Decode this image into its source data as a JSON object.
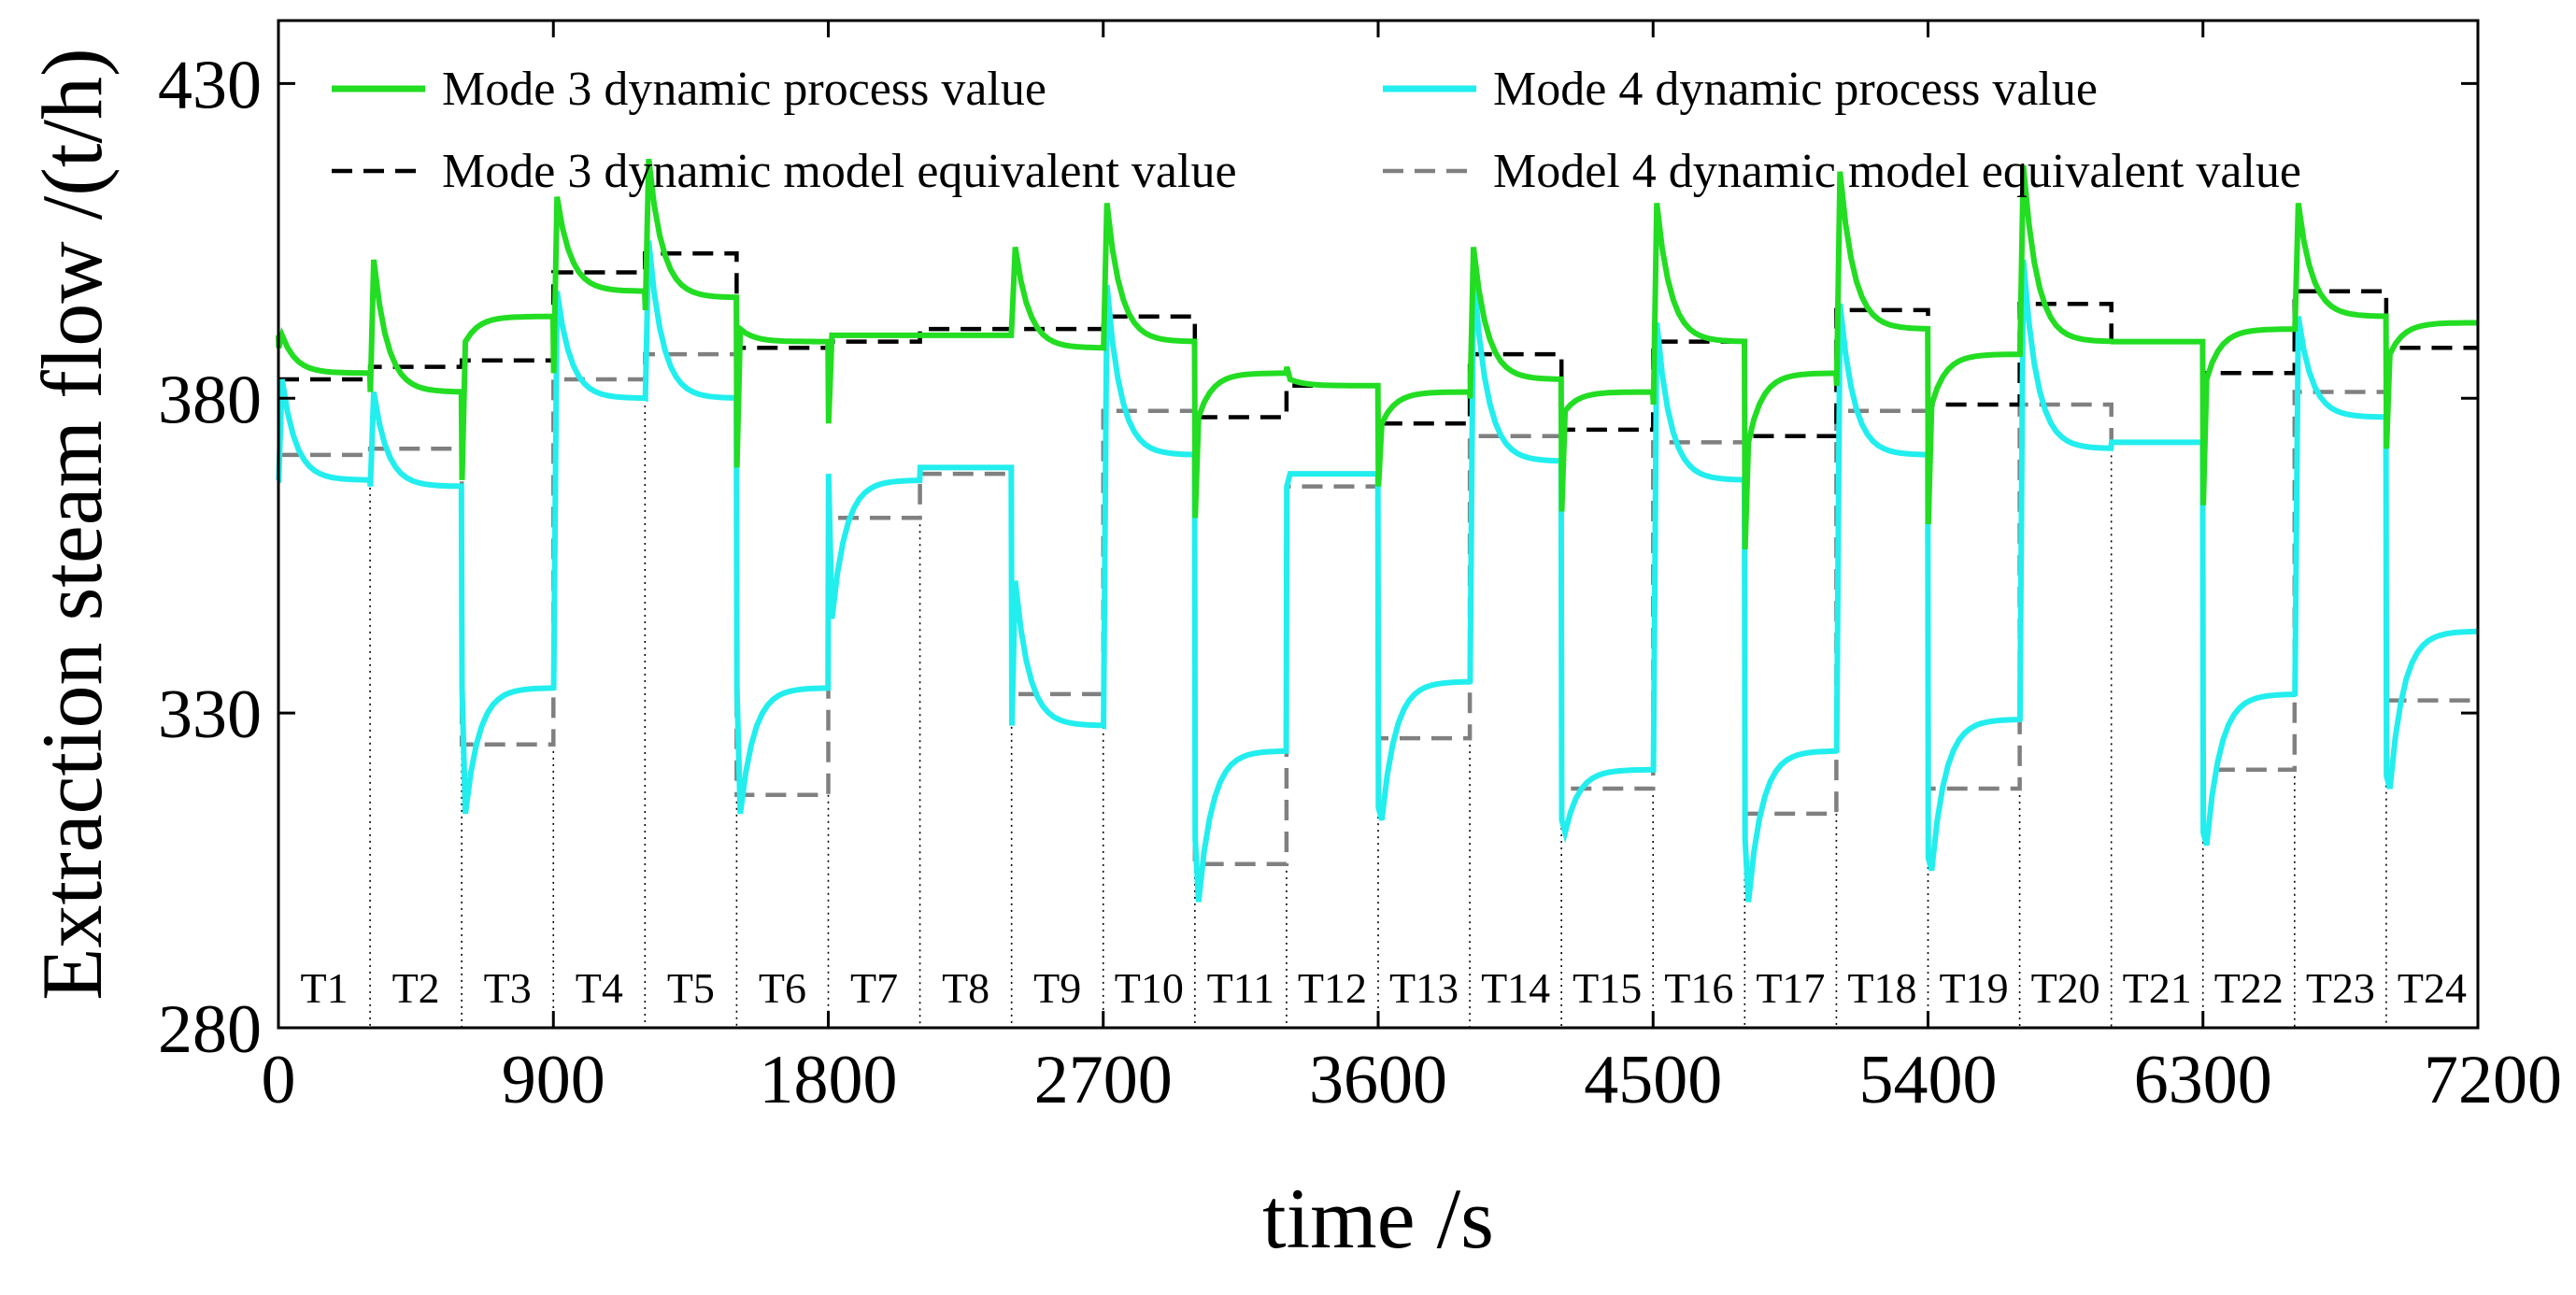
{
  "colors": {
    "mode3_process": "#22dd22",
    "mode4_process": "#22eeee",
    "mode3_model": "#000000",
    "mode4_model": "#808080"
  },
  "chart_data": {
    "type": "line",
    "title": "",
    "xlabel": "time /s",
    "ylabel": "Extraction steam flow /(t/h)",
    "xlim": [
      0,
      7200
    ],
    "ylim": [
      280,
      440
    ],
    "xticks": [
      0,
      900,
      1800,
      2700,
      3600,
      4500,
      5400,
      6300,
      7200
    ],
    "yticks": [
      280,
      330,
      380,
      430
    ],
    "legend": {
      "position": "top",
      "entries": [
        "Mode 3 dynamic process value",
        "Mode 4 dynamic process value",
        "Mode 3 dynamic model equivalent value",
        "Model 4 dynamic model equivalent value"
      ]
    },
    "segment_duration_s": 300,
    "segments": [
      "T1",
      "T2",
      "T3",
      "T4",
      "T5",
      "T6",
      "T7",
      "T8",
      "T9",
      "T10",
      "T11",
      "T12",
      "T13",
      "T14",
      "T15",
      "T16",
      "T17",
      "T18",
      "T19",
      "T20",
      "T21",
      "T22",
      "T23",
      "T24"
    ],
    "series": [
      {
        "name": "Mode 3 dynamic model equivalent value",
        "style": "dashed",
        "values": [
          383,
          385,
          386,
          400,
          403,
          388,
          389,
          391,
          391,
          393,
          377,
          382,
          376,
          387,
          375,
          389,
          374,
          394,
          379,
          395,
          389,
          384,
          397,
          388
        ]
      },
      {
        "name": "Model 4 dynamic model equivalent value",
        "style": "dashed",
        "values": [
          371,
          372,
          325,
          383,
          387,
          317,
          361,
          368,
          333,
          378,
          306,
          366,
          326,
          374,
          318,
          373,
          314,
          378,
          318,
          379,
          373,
          321,
          381,
          332
        ]
      },
      {
        "name": "Mode 3 dynamic process value",
        "style": "solid",
        "initial": 390,
        "segments": [
          {
            "start": 388,
            "peak": 390,
            "settle": 384
          },
          {
            "start": 381,
            "peak": 402,
            "settle": 381
          },
          {
            "start": 367,
            "peak": 389,
            "settle": 393
          },
          {
            "start": 384,
            "peak": 412,
            "settle": 397
          },
          {
            "start": 394,
            "peak": 418,
            "settle": 396
          },
          {
            "start": 369,
            "peak": 391,
            "settle": 389
          },
          {
            "start": 376,
            "peak": 390,
            "settle": 390
          },
          {
            "start": 390,
            "peak": 390,
            "settle": 390
          },
          {
            "start": 392,
            "peak": 404,
            "settle": 388
          },
          {
            "start": 388,
            "peak": 411,
            "settle": 389
          },
          {
            "start": 361,
            "peak": 377,
            "settle": 384
          },
          {
            "start": 385,
            "peak": 383,
            "settle": 382
          },
          {
            "start": 366,
            "peak": 376,
            "settle": 381
          },
          {
            "start": 380,
            "peak": 404,
            "settle": 383
          },
          {
            "start": 362,
            "peak": 378,
            "settle": 381
          },
          {
            "start": 379,
            "peak": 411,
            "settle": 389
          },
          {
            "start": 356,
            "peak": 373,
            "settle": 384
          },
          {
            "start": 382,
            "peak": 416,
            "settle": 391
          },
          {
            "start": 360,
            "peak": 379,
            "settle": 387
          },
          {
            "start": 387,
            "peak": 417,
            "settle": 389
          },
          {
            "start": 389,
            "peak": 389,
            "settle": 389
          },
          {
            "start": 363,
            "peak": 383,
            "settle": 391
          },
          {
            "start": 391,
            "peak": 411,
            "settle": 393
          },
          {
            "start": 372,
            "peak": 387,
            "settle": 392
          }
        ]
      },
      {
        "name": "Mode 4 dynamic process value",
        "style": "solid",
        "initial": 367,
        "segments": [
          {
            "start": 367,
            "peak": 383,
            "settle": 367
          },
          {
            "start": 366,
            "peak": 381,
            "settle": 366
          },
          {
            "start": 334,
            "peak": 314,
            "settle": 334
          },
          {
            "start": 334,
            "peak": 397,
            "settle": 380
          },
          {
            "start": 380,
            "peak": 405,
            "settle": 380
          },
          {
            "start": 334,
            "peak": 314,
            "settle": 334
          },
          {
            "start": 368,
            "peak": 345,
            "settle": 367
          },
          {
            "start": 369,
            "peak": 369,
            "settle": 369
          },
          {
            "start": 328,
            "peak": 351,
            "settle": 328
          },
          {
            "start": 328,
            "peak": 398,
            "settle": 371
          },
          {
            "start": 310,
            "peak": 300,
            "settle": 324
          },
          {
            "start": 366,
            "peak": 368,
            "settle": 368
          },
          {
            "start": 315,
            "peak": 313,
            "settle": 335
          },
          {
            "start": 335,
            "peak": 400,
            "settle": 370
          },
          {
            "start": 313,
            "peak": 311,
            "settle": 321
          },
          {
            "start": 321,
            "peak": 392,
            "settle": 367
          },
          {
            "start": 310,
            "peak": 300,
            "settle": 324
          },
          {
            "start": 324,
            "peak": 395,
            "settle": 371
          },
          {
            "start": 307,
            "peak": 305,
            "settle": 329
          },
          {
            "start": 329,
            "peak": 402,
            "settle": 372
          },
          {
            "start": 373,
            "peak": 373,
            "settle": 373
          },
          {
            "start": 311,
            "peak": 309,
            "settle": 333
          },
          {
            "start": 333,
            "peak": 393,
            "settle": 377
          },
          {
            "start": 320,
            "peak": 318,
            "settle": 343
          }
        ]
      }
    ]
  }
}
